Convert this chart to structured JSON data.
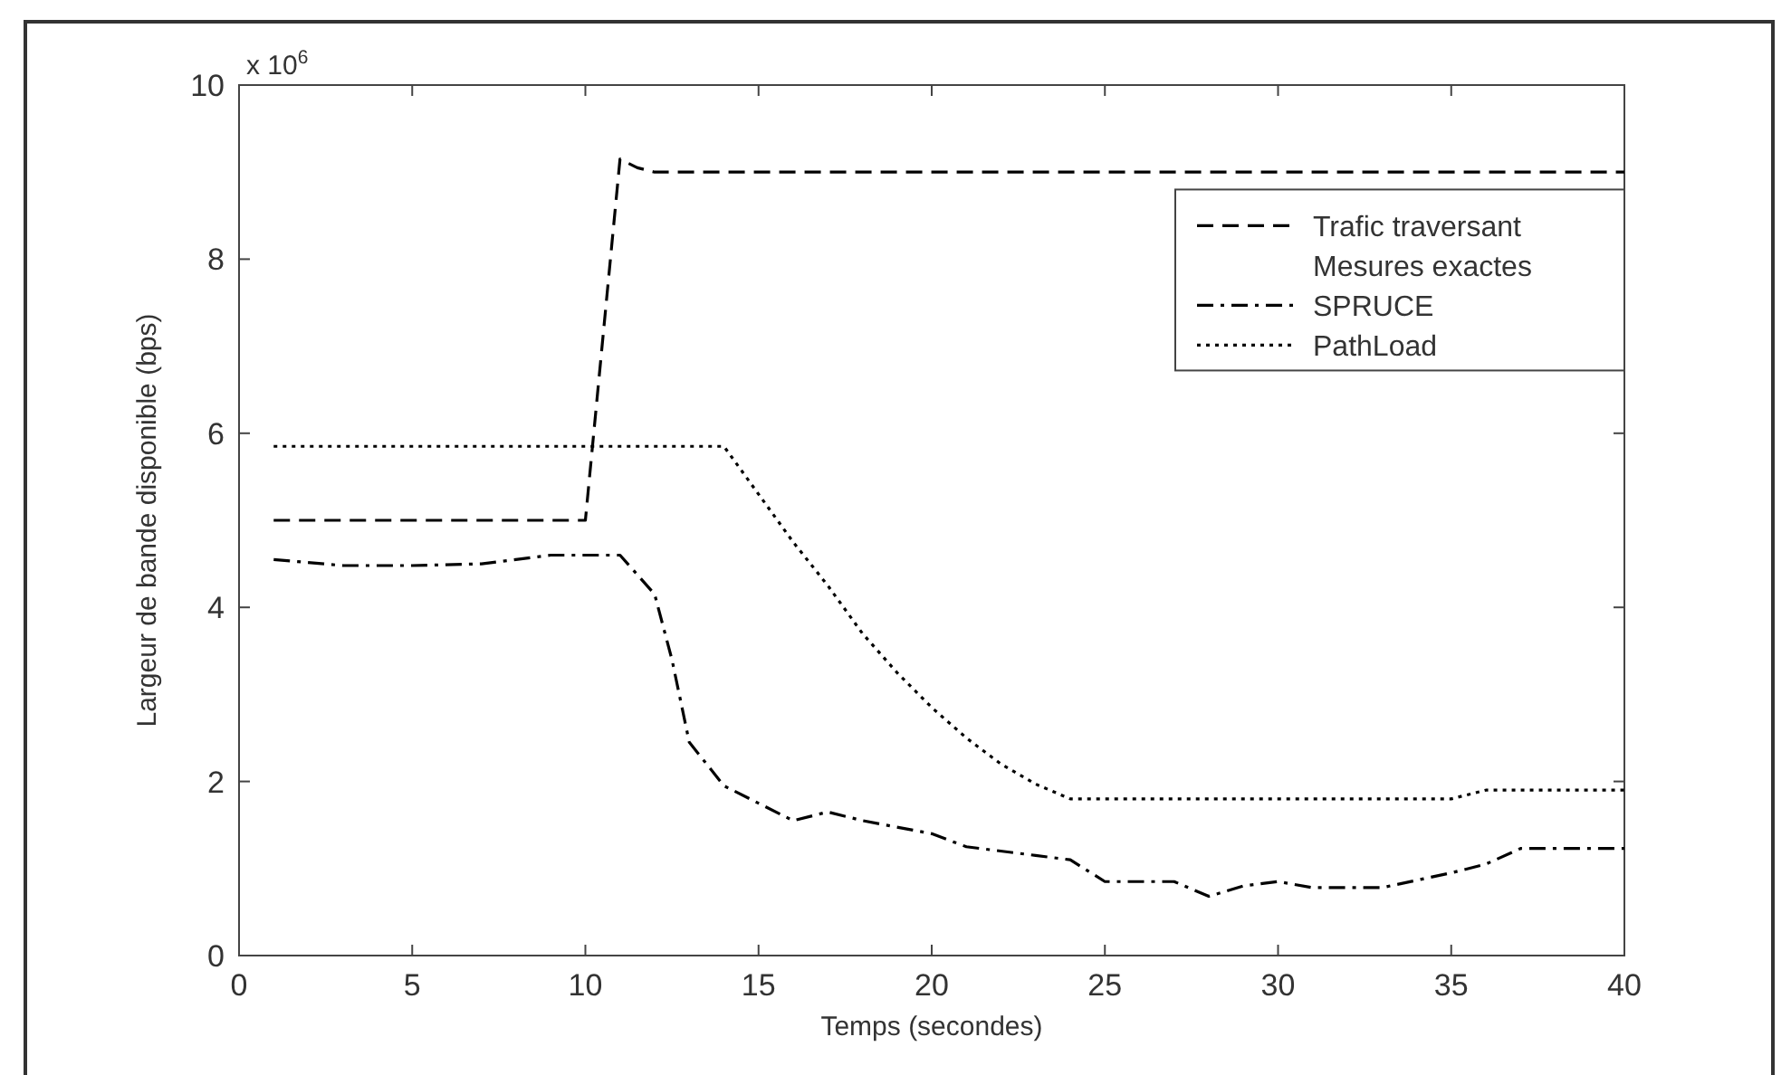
{
  "chart_data": {
    "type": "line",
    "xlabel": "Temps (secondes)",
    "ylabel": "Largeur de bande disponible (bps)",
    "xlim": [
      0,
      40
    ],
    "xticks": [
      0,
      5,
      10,
      15,
      20,
      25,
      30,
      35,
      40
    ],
    "ylim": [
      0,
      10
    ],
    "yticks": [
      0,
      2,
      4,
      6,
      8,
      10
    ],
    "grid": false,
    "legend": "top right",
    "annotations": [
      "x 10$^{6}$",
      "Mesures exactes"
    ],
    "series": [
      {
        "name": "Trafic traversant",
        "color": "#000000",
        "line_style": "dashed",
        "x": [
          1,
          10,
          11,
          11.5,
          12,
          40
        ],
        "values": [
          5.0,
          5.0,
          9.15,
          9.05,
          9.0,
          9.0
        ]
      },
      {
        "name": "SPRUCE",
        "color": "#000000",
        "line_style": "dashdot",
        "x": [
          1,
          3,
          5,
          7,
          9,
          11,
          12,
          12.5,
          13,
          14,
          16,
          17,
          18,
          20,
          21,
          23,
          24,
          25,
          27,
          28,
          29,
          30,
          31,
          33,
          35,
          36,
          37,
          40
        ],
        "values": [
          4.55,
          4.48,
          4.48,
          4.5,
          4.6,
          4.6,
          4.15,
          3.4,
          2.45,
          1.95,
          1.55,
          1.65,
          1.55,
          1.4,
          1.25,
          1.15,
          1.1,
          0.85,
          0.85,
          0.68,
          0.8,
          0.85,
          0.78,
          0.78,
          0.95,
          1.05,
          1.23,
          1.23
        ]
      },
      {
        "name": "PathLoad",
        "color": "#000000",
        "line_style": "dotted",
        "x": [
          1,
          14,
          15,
          16,
          17,
          18,
          19,
          20,
          21,
          22,
          23,
          24,
          35,
          36,
          40
        ],
        "values": [
          5.85,
          5.85,
          5.3,
          4.75,
          4.25,
          3.7,
          3.25,
          2.85,
          2.5,
          2.2,
          1.97,
          1.8,
          1.8,
          1.9,
          1.9
        ]
      }
    ]
  }
}
